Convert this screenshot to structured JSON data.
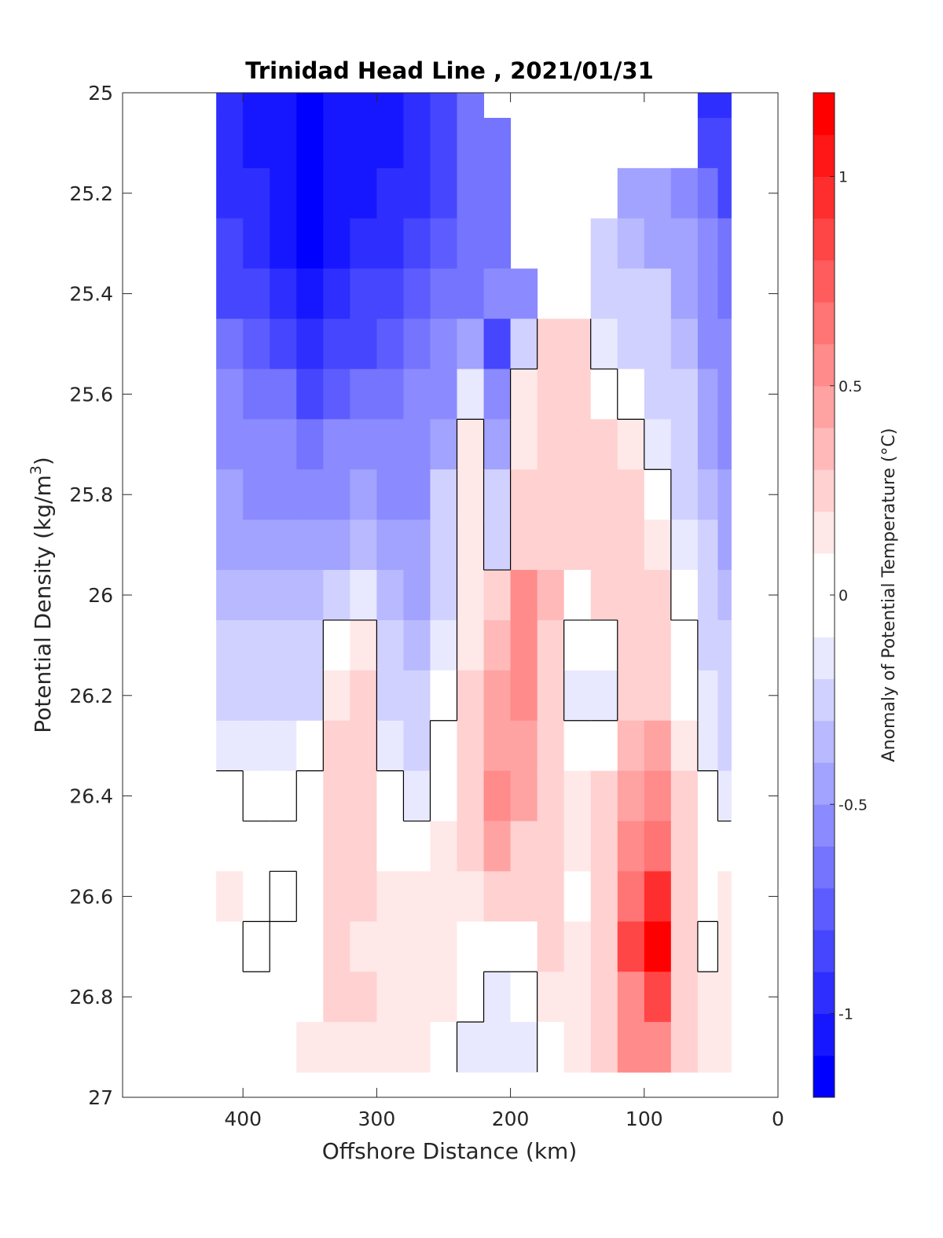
{
  "chart_data": {
    "type": "heatmap",
    "title": "Trinidad Head Line , 2021/01/31",
    "xlabel": "Offshore Distance (km)",
    "ylabel": "Potential Density (kg/m",
    "ylabel_sup": "3",
    "ylabel_close": ")",
    "xlim": [
      490,
      0
    ],
    "ylim": [
      27,
      25
    ],
    "y_reversed": true,
    "x_ticks": [
      400,
      300,
      200,
      100,
      0
    ],
    "x_tick_labels": [
      "400",
      "300",
      "200",
      "100",
      "0"
    ],
    "y_ticks": [
      25,
      25.2,
      25.4,
      25.6,
      25.8,
      26,
      26.2,
      26.4,
      26.6,
      26.8,
      27
    ],
    "y_tick_labels": [
      "25",
      "25.2",
      "25.4",
      "25.6",
      "25.8",
      "26",
      "26.2",
      "26.4",
      "26.6",
      "26.8",
      "27"
    ],
    "colorbar": {
      "label": "Anomaly of Potential Temperature (°C)",
      "range": [
        -1.2,
        1.2
      ],
      "step": 0.1,
      "low_color": "#0000ff",
      "mid_color": "#ffffff",
      "high_color": "#ff0000",
      "ticks": [
        1,
        0.5,
        0,
        -0.5,
        -1
      ],
      "tick_labels": [
        "1",
        "0.5",
        "0",
        "-0.5",
        "-1"
      ]
    },
    "x": [
      410,
      390,
      370,
      350,
      330,
      310,
      290,
      270,
      250,
      230,
      210,
      190,
      170,
      150,
      130,
      110,
      90,
      70,
      50,
      40
    ],
    "y": [
      25,
      25.1,
      25.2,
      25.3,
      25.4,
      25.5,
      25.6,
      25.7,
      25.8,
      25.9,
      26,
      26.1,
      26.2,
      26.3,
      26.4,
      26.5,
      26.6,
      26.7,
      26.8,
      26.9
    ],
    "z": [
      [
        -0.9,
        -1.0,
        -1.0,
        -1.1,
        -1.0,
        -1.0,
        -1.0,
        -0.9,
        -0.8,
        -0.7,
        null,
        null,
        null,
        null,
        null,
        null,
        null,
        null,
        -0.9,
        -0.9
      ],
      [
        -0.9,
        -1.0,
        -1.0,
        -1.1,
        -1.0,
        -1.0,
        -1.0,
        -0.9,
        -0.8,
        -0.7,
        -0.7,
        null,
        null,
        null,
        null,
        null,
        null,
        null,
        -0.8,
        -0.8
      ],
      [
        -0.9,
        -0.9,
        -1.0,
        -1.1,
        -1.0,
        -1.0,
        -0.9,
        -0.9,
        -0.8,
        -0.7,
        -0.7,
        null,
        null,
        null,
        null,
        -0.4,
        -0.45,
        -0.5,
        -0.7,
        -0.8
      ],
      [
        -0.8,
        -0.9,
        -1.0,
        -1.1,
        -1.0,
        -0.9,
        -0.9,
        -0.8,
        -0.75,
        -0.7,
        -0.7,
        null,
        null,
        null,
        -0.3,
        -0.35,
        -0.4,
        -0.45,
        -0.6,
        -0.7
      ],
      [
        -0.8,
        -0.85,
        -0.9,
        -1.0,
        -0.9,
        -0.85,
        -0.8,
        -0.75,
        -0.7,
        -0.65,
        -0.6,
        -0.5,
        null,
        null,
        -0.2,
        -0.25,
        -0.3,
        -0.4,
        -0.55,
        -0.65
      ],
      [
        -0.7,
        -0.75,
        -0.8,
        -0.9,
        -0.85,
        -0.8,
        -0.75,
        -0.7,
        -0.6,
        -0.4,
        -0.8,
        -0.3,
        0.2,
        0.25,
        -0.15,
        -0.2,
        -0.25,
        -0.35,
        -0.5,
        -0.6
      ],
      [
        -0.6,
        -0.65,
        -0.7,
        -0.8,
        -0.75,
        -0.7,
        -0.65,
        -0.6,
        -0.5,
        -0.1,
        -0.6,
        0.1,
        0.3,
        0.3,
        0.05,
        -0.05,
        -0.2,
        -0.3,
        -0.45,
        -0.55
      ],
      [
        -0.5,
        -0.55,
        -0.6,
        -0.65,
        -0.6,
        -0.55,
        -0.55,
        -0.55,
        -0.4,
        0.1,
        -0.4,
        0.15,
        0.3,
        0.3,
        0.2,
        0.1,
        -0.1,
        -0.25,
        -0.4,
        -0.5
      ],
      [
        -0.45,
        -0.5,
        -0.5,
        -0.55,
        -0.5,
        -0.45,
        -0.5,
        -0.5,
        -0.3,
        0.15,
        -0.3,
        0.2,
        0.3,
        0.3,
        0.3,
        0.25,
        0.05,
        -0.2,
        -0.35,
        -0.45
      ],
      [
        -0.4,
        -0.45,
        -0.45,
        -0.45,
        -0.4,
        -0.35,
        -0.45,
        -0.45,
        -0.25,
        0.1,
        -0.2,
        0.3,
        0.3,
        0.25,
        0.3,
        0.3,
        0.15,
        -0.1,
        -0.3,
        -0.4
      ],
      [
        -0.35,
        -0.35,
        -0.35,
        -0.35,
        -0.2,
        -0.15,
        -0.35,
        -0.4,
        -0.2,
        0.1,
        0.2,
        0.5,
        0.35,
        0.05,
        0.2,
        0.3,
        0.2,
        -0.05,
        -0.25,
        -0.35
      ],
      [
        -0.3,
        -0.3,
        -0.3,
        -0.3,
        0.05,
        0.1,
        -0.3,
        -0.35,
        -0.1,
        0.15,
        0.35,
        0.55,
        0.3,
        -0.05,
        -0.05,
        0.3,
        0.25,
        0.0,
        -0.2,
        -0.3
      ],
      [
        -0.2,
        -0.25,
        -0.25,
        -0.2,
        0.15,
        0.2,
        -0.2,
        -0.3,
        -0.05,
        0.2,
        0.4,
        0.5,
        0.3,
        -0.1,
        -0.1,
        0.3,
        0.3,
        0.05,
        -0.15,
        -0.25
      ],
      [
        -0.1,
        -0.15,
        -0.15,
        -0.05,
        0.2,
        0.3,
        -0.1,
        -0.25,
        0.0,
        0.25,
        0.45,
        0.45,
        0.3,
        0.05,
        0.05,
        0.35,
        0.4,
        0.1,
        -0.1,
        -0.2
      ],
      [
        0.0,
        -0.05,
        -0.05,
        0.0,
        0.2,
        0.25,
        0.0,
        -0.15,
        0.05,
        0.2,
        0.5,
        0.4,
        0.3,
        0.15,
        0.2,
        0.45,
        0.55,
        0.2,
        0.0,
        -0.1
      ],
      [
        0.05,
        0.0,
        0.0,
        0.0,
        0.2,
        0.2,
        0.05,
        0.0,
        0.1,
        0.2,
        0.4,
        0.3,
        0.25,
        0.1,
        0.3,
        0.6,
        0.7,
        0.25,
        0.05,
        0.05
      ],
      [
        0.1,
        0.0,
        -0.05,
        0.0,
        0.2,
        0.2,
        0.15,
        0.1,
        0.1,
        0.15,
        0.3,
        0.2,
        0.2,
        0.05,
        0.3,
        0.7,
        0.9,
        0.3,
        0.05,
        0.1
      ],
      [
        0.0,
        -0.05,
        0.0,
        0.0,
        0.2,
        0.15,
        0.1,
        0.1,
        0.1,
        0.05,
        0.0,
        0.05,
        0.2,
        0.15,
        0.3,
        0.8,
        1.1,
        0.3,
        -0.05,
        0.1
      ],
      [
        0.0,
        0.0,
        0.0,
        0.05,
        0.2,
        0.2,
        0.15,
        0.1,
        0.1,
        0.0,
        -0.1,
        -0.05,
        0.15,
        0.15,
        0.3,
        0.6,
        0.8,
        0.25,
        0.1,
        0.15
      ],
      [
        0.0,
        0.0,
        0.05,
        0.1,
        0.15,
        0.15,
        0.1,
        0.1,
        0.05,
        -0.1,
        -0.15,
        -0.1,
        0.05,
        0.1,
        0.3,
        0.5,
        0.5,
        0.2,
        0.1,
        0.1
      ]
    ]
  }
}
